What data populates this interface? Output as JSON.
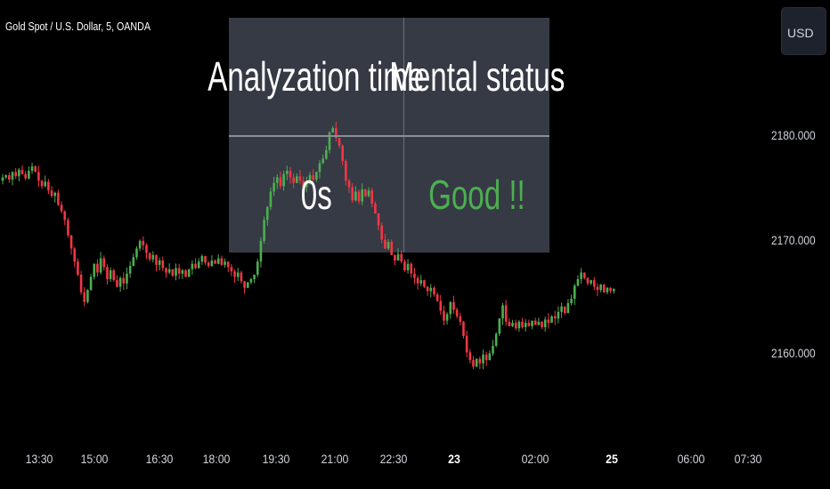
{
  "header": {
    "title": "Gold Spot / U.S. Dollar, 5, OANDA",
    "currency_button": "USD"
  },
  "table": {
    "headers": [
      "Analyzation time",
      "Mental status"
    ],
    "values": [
      "0s",
      "Good !!"
    ],
    "colors": {
      "background": "#363a45",
      "header_text": "#ffffff",
      "value_0": "#ffffff",
      "value_1": "#4caf50"
    }
  },
  "chart_data": {
    "type": "candlestick",
    "title": "Gold Spot / U.S. Dollar, 5, OANDA",
    "interval": "5",
    "y_ticks": [
      "2180.000",
      "2170.000",
      "2160.000"
    ],
    "x_ticks": [
      "13:30",
      "15:00",
      "16:30",
      "18:00",
      "19:30",
      "21:00",
      "22:30",
      "23",
      "02:00",
      "25",
      "06:00",
      "07:30"
    ],
    "ylim": [
      2147,
      2192
    ],
    "colors": {
      "up": "#4caf50",
      "down": "#f23645",
      "background": "#000000"
    },
    "closes": [
      2176.3,
      2176.5,
      2176.1,
      2176.8,
      2176.4,
      2177.0,
      2176.6,
      2176.2,
      2176.9,
      2177.3,
      2176.8,
      2176.0,
      2175.5,
      2175.9,
      2175.1,
      2174.6,
      2174.9,
      2173.8,
      2173.2,
      2172.4,
      2171.0,
      2169.8,
      2168.6,
      2167.4,
      2165.8,
      2164.9,
      2166.0,
      2167.2,
      2168.4,
      2167.6,
      2168.9,
      2168.1,
      2167.0,
      2167.8,
      2166.9,
      2166.3,
      2167.1,
      2166.6,
      2167.5,
      2168.2,
      2169.0,
      2169.8,
      2170.5,
      2170.1,
      2169.4,
      2168.8,
      2169.2,
      2168.3,
      2168.7,
      2168.0,
      2167.6,
      2167.9,
      2167.3,
      2168.0,
      2167.5,
      2167.8,
      2167.2,
      2167.9,
      2168.4,
      2168.0,
      2168.6,
      2169.1,
      2168.5,
      2168.2,
      2168.7,
      2168.4,
      2168.9,
      2168.3,
      2168.6,
      2168.1,
      2167.7,
      2167.2,
      2167.6,
      2166.8,
      2166.2,
      2166.7,
      2167.0,
      2167.4,
      2168.6,
      2170.5,
      2172.4,
      2173.6,
      2175.0,
      2175.8,
      2176.3,
      2175.5,
      2176.6,
      2176.9,
      2176.3,
      2175.8,
      2176.4,
      2176.0,
      2175.4,
      2175.9,
      2176.5,
      2176.1,
      2176.8,
      2177.6,
      2178.0,
      2178.8,
      2180.4,
      2180.8,
      2179.9,
      2179.2,
      2177.8,
      2176.0,
      2175.4,
      2174.2,
      2175.0,
      2174.1,
      2175.2,
      2174.6,
      2175.1,
      2173.9,
      2173.0,
      2171.9,
      2170.6,
      2169.8,
      2170.4,
      2169.2,
      2168.7,
      2169.3,
      2168.6,
      2167.8,
      2168.4,
      2167.5,
      2167.1,
      2166.6,
      2166.9,
      2166.3,
      2165.9,
      2166.2,
      2165.6,
      2165.0,
      2164.1,
      2163.2,
      2163.8,
      2164.9,
      2164.2,
      2163.6,
      2163.1,
      2161.8,
      2160.3,
      2159.6,
      2159.0,
      2159.7,
      2159.3,
      2160.1,
      2159.6,
      2160.2,
      2160.9,
      2162.0,
      2163.4,
      2164.6,
      2163.1,
      2162.7,
      2163.0,
      2162.5,
      2163.1,
      2162.6,
      2163.0,
      2162.7,
      2163.2,
      2162.8,
      2163.1,
      2162.6,
      2163.3,
      2163.0,
      2163.6,
      2163.4,
      2164.0,
      2164.5,
      2163.9,
      2164.8,
      2165.2,
      2166.4,
      2167.0,
      2167.6,
      2167.1,
      2166.6,
      2166.9,
      2166.3,
      2166.0,
      2166.5,
      2165.8,
      2166.2,
      2165.9,
      2166.1
    ]
  }
}
